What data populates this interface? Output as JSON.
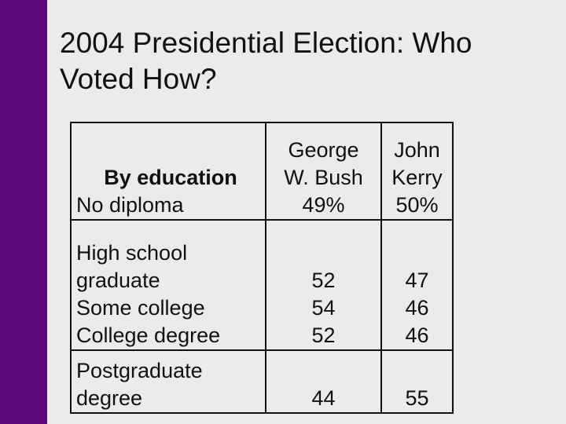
{
  "title": "2004 Presidential Election: Who Voted How?",
  "table": {
    "header": {
      "category": "By education",
      "candidate1_line1": "George",
      "candidate1_line2": "W. Bush",
      "candidate2_line1": "John",
      "candidate2_line2": "Kerry"
    },
    "rows": [
      {
        "label": "No diploma",
        "bush": "49%",
        "kerry": "50%"
      },
      {
        "label_line1": "High school",
        "label_line2": "graduate",
        "bush": "52",
        "kerry": "47"
      },
      {
        "label": "Some college",
        "bush": "54",
        "kerry": "46"
      },
      {
        "label": "College degree",
        "bush": "52",
        "kerry": "46"
      },
      {
        "label_line1": "Postgraduate",
        "label_line2": "degree",
        "bush": "44",
        "kerry": "55"
      }
    ]
  }
}
